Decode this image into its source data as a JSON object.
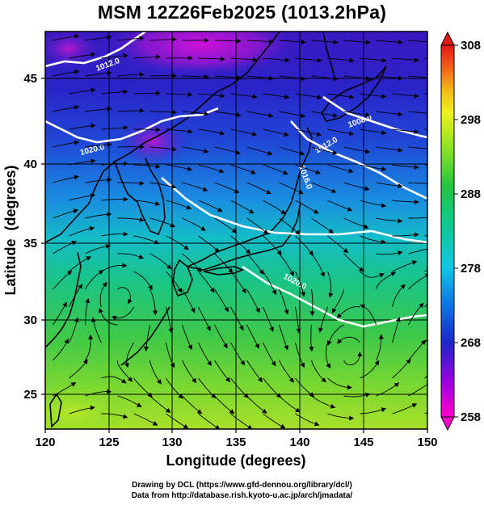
{
  "title": "MSM 12Z26Feb2025 (1013.2hPa)",
  "x_axis": {
    "label": "Longitude (degrees)",
    "min": 120,
    "max": 150,
    "ticks": [
      "120",
      "125",
      "130",
      "135",
      "140",
      "145",
      "150"
    ]
  },
  "y_axis": {
    "label": "Latitude  (degrees)",
    "min": 22.4,
    "max": 47.6,
    "ticks": [
      "25",
      "30",
      "35",
      "40",
      "45"
    ]
  },
  "colorbar": {
    "min": 258,
    "max": 308,
    "labels": [
      "308",
      "298",
      "288",
      "278",
      "268",
      "258"
    ]
  },
  "contour_labels": [
    "1012.0",
    "1020.0",
    "1008.0",
    "1012.0",
    "1016.0",
    "1020.0"
  ],
  "footer": {
    "line1": "Drawing by DCL (https://www.gfd-dennou.org/library/dcl/)",
    "line2": "Data from http://database.rish.kyoto-u.ac.jp/arch/jmadata/"
  },
  "colors": {
    "land_outline": "#000000",
    "contour": "#ffffff",
    "streamline": "#000000"
  }
}
